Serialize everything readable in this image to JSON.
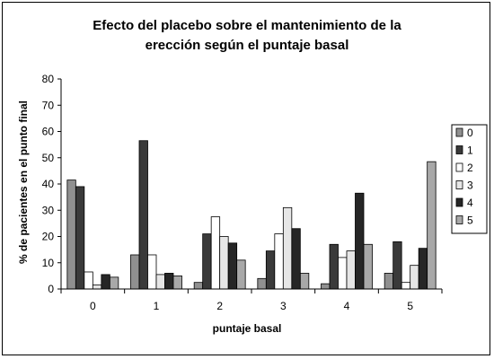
{
  "chart_data": {
    "type": "bar",
    "title_lines": [
      "Efecto del placebo sobre el mantenimiento de la",
      "erección según el puntaje basal"
    ],
    "xlabel": "puntaje basal",
    "ylabel": "% de pacientes en el punto final",
    "ylim": [
      0,
      80
    ],
    "yticks": [
      "0",
      "10",
      "20",
      "30",
      "40",
      "50",
      "60",
      "70",
      "80"
    ],
    "categories": [
      "0",
      "1",
      "2",
      "3",
      "4",
      "5"
    ],
    "legend_position": "right",
    "series": [
      {
        "name": "0",
        "color": "#909090",
        "values": [
          41.5,
          13,
          2.5,
          4,
          2,
          6
        ]
      },
      {
        "name": "1",
        "color": "#3a3a3a",
        "values": [
          39,
          56.5,
          21,
          14.5,
          17,
          18
        ]
      },
      {
        "name": "2",
        "color": "#ffffff",
        "values": [
          6.5,
          13,
          27.5,
          21,
          12,
          2.5
        ]
      },
      {
        "name": "3",
        "color": "#e6e6e6",
        "values": [
          1.5,
          5.5,
          20,
          31,
          14.5,
          9
        ]
      },
      {
        "name": "4",
        "color": "#262626",
        "values": [
          5.5,
          6,
          17.5,
          23,
          36.5,
          15.5
        ]
      },
      {
        "name": "5",
        "color": "#a8a8a8",
        "values": [
          4.5,
          5,
          11,
          6,
          17,
          48.5
        ]
      }
    ]
  }
}
